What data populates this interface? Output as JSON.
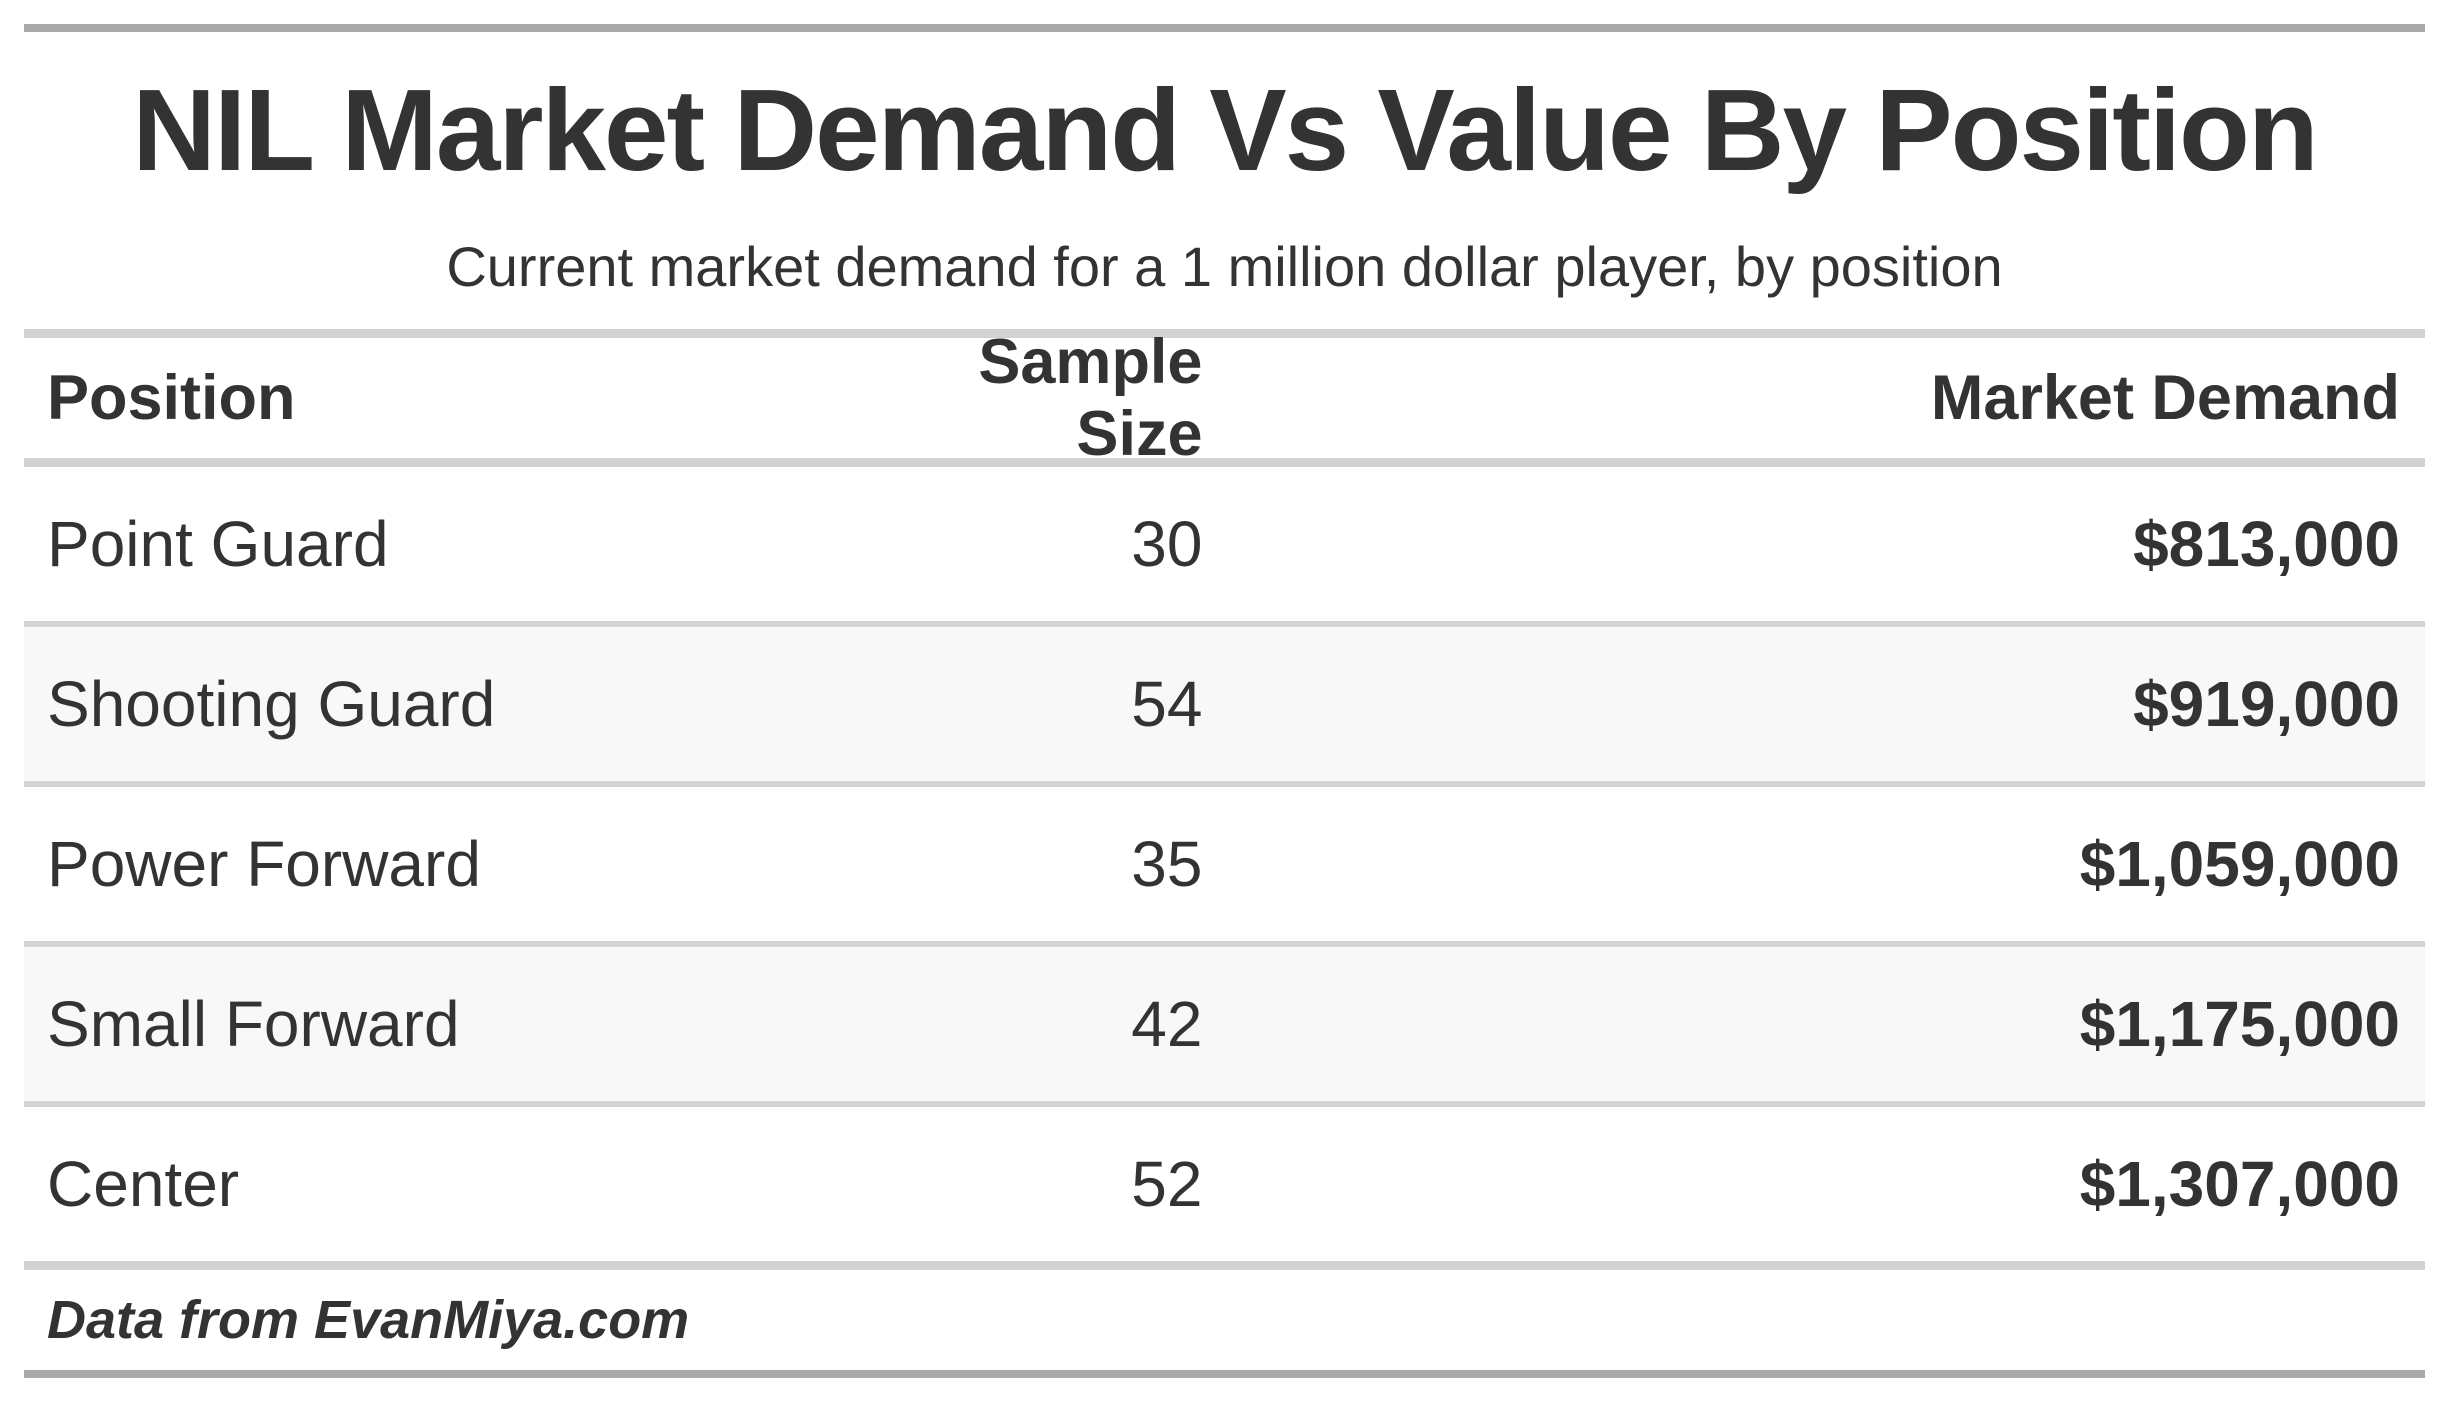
{
  "chart_data": {
    "type": "table",
    "title": "NIL Market Demand Vs Value By Position",
    "subtitle": "Current market demand for a 1 million dollar player, by position",
    "columns": [
      "Position",
      "Sample Size",
      "Market Demand"
    ],
    "rows": [
      {
        "position": "Point Guard",
        "sample_size": 30,
        "market_demand": "$813,000",
        "market_demand_value": 813000
      },
      {
        "position": "Shooting Guard",
        "sample_size": 54,
        "market_demand": "$919,000",
        "market_demand_value": 919000
      },
      {
        "position": "Power Forward",
        "sample_size": 35,
        "market_demand": "$1,059,000",
        "market_demand_value": 1059000
      },
      {
        "position": "Small Forward",
        "sample_size": 42,
        "market_demand": "$1,175,000",
        "market_demand_value": 1175000
      },
      {
        "position": "Center",
        "sample_size": 52,
        "market_demand": "$1,307,000",
        "market_demand_value": 1307000
      }
    ],
    "source_note": "Data from EvanMiya.com",
    "layout": {
      "striped_row_indexes": [
        1,
        3
      ],
      "numeric_columns_right_aligned": true,
      "legend": "none",
      "grid": "horizontal-rules-only"
    }
  },
  "colors": {
    "text": "#333333",
    "outer_bar": "#a9a9a9",
    "rule": "#d2d2d2",
    "row_divider": "#d3d3d3",
    "stripe": "#f8f8f8",
    "background": "#ffffff"
  }
}
